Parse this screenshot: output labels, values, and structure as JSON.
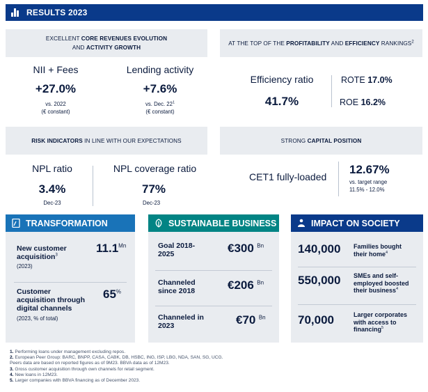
{
  "banner": {
    "title": "RESULTS 2023"
  },
  "top_left_header": {
    "pre": "EXCELLENT ",
    "bold1": "CORE REVENUES EVOLUTION",
    "mid": "AND ",
    "bold2": "ACTIVITY GROWTH"
  },
  "top_right_header": {
    "pre": "AT THE TOP OF THE ",
    "bold1": "PROFITABILITY",
    "mid": " AND ",
    "bold2": "EFFICIENCY",
    "post": " RANKINGS",
    "sup": "2"
  },
  "nii": {
    "label": "NII + Fees",
    "value": "+27.0%",
    "note1": "vs. 2022",
    "note2": "(€ constant)"
  },
  "lending": {
    "label": "Lending activity",
    "value": "+7.6%",
    "note1": "vs. Dec. 22",
    "sup": "1",
    "note2": "(€ constant)"
  },
  "efficiency": {
    "label": "Efficiency ratio",
    "value": "41.7%"
  },
  "rote": {
    "label": "ROTE",
    "value": "17.0%"
  },
  "roe": {
    "label": "ROE",
    "value": "16.2%"
  },
  "risk_header": {
    "bold": "RISK INDICATORS",
    "post": " IN LINE WITH OUR EXPECTATIONS"
  },
  "capital_header": {
    "pre": "STRONG ",
    "bold": "CAPITAL POSITION"
  },
  "npl": {
    "label": "NPL ratio",
    "value": "3.4%",
    "date": "Dec-23"
  },
  "npl_cov": {
    "label": "NPL coverage ratio",
    "value": "77%",
    "date": "Dec-23"
  },
  "cet1": {
    "label": "CET1 fully-loaded",
    "value": "12.67%",
    "note1": "vs. target range",
    "note2": "11.5% - 12.0%"
  },
  "transformation": {
    "title": "TRANSFORMATION",
    "color": "#1973b8",
    "item1": {
      "title": "New customer acquisition",
      "sup": "3",
      "sub": "(2023)",
      "value": "11.1",
      "unit": "Mn"
    },
    "item2": {
      "title": "Customer acquisition through digital channels",
      "sub": "(2023, % of total)",
      "value": "65",
      "unit": "%"
    }
  },
  "sustainable": {
    "title": "SUSTAINABLE BUSINESS",
    "color": "#028484",
    "item1": {
      "title": "Goal 2018-2025",
      "value": "€300",
      "unit": "Bn"
    },
    "item2": {
      "title": "Channeled since 2018",
      "value": "€206",
      "unit": "Bn"
    },
    "item3": {
      "title": "Channeled in 2023",
      "value": "€70",
      "unit": "Bn"
    }
  },
  "impact": {
    "title": "IMPACT ON SOCIETY",
    "color": "#0a3a8a",
    "item1": {
      "value": "140,000",
      "text": "Families bought their home",
      "sup": "4"
    },
    "item2": {
      "value": "550,000",
      "text": "SMEs and self-employed boosted their business",
      "sup": "4"
    },
    "item3": {
      "value": "70,000",
      "text": "Larger corporates with access to financing",
      "sup": "5"
    }
  },
  "footnotes": [
    {
      "n": "1.",
      "text": "Performing loans under management excluding repos."
    },
    {
      "n": "2.",
      "text": "European Peer Group: BARC, BNPP, CASA, CABK, DB, HSBC, ING, ISP, LBG, NDA, SAN, SG, UCG."
    },
    {
      "n": "",
      "text": "Peers data are based on reported figures as of 9M23. BBVA data as of 12M23."
    },
    {
      "n": "3.",
      "text": "Gross customer acquisition through own channels for retail segment."
    },
    {
      "n": "4.",
      "text": "New loans in 12M23."
    },
    {
      "n": "5.",
      "text": "Larger companies with BBVA financing as of December 2023."
    }
  ]
}
